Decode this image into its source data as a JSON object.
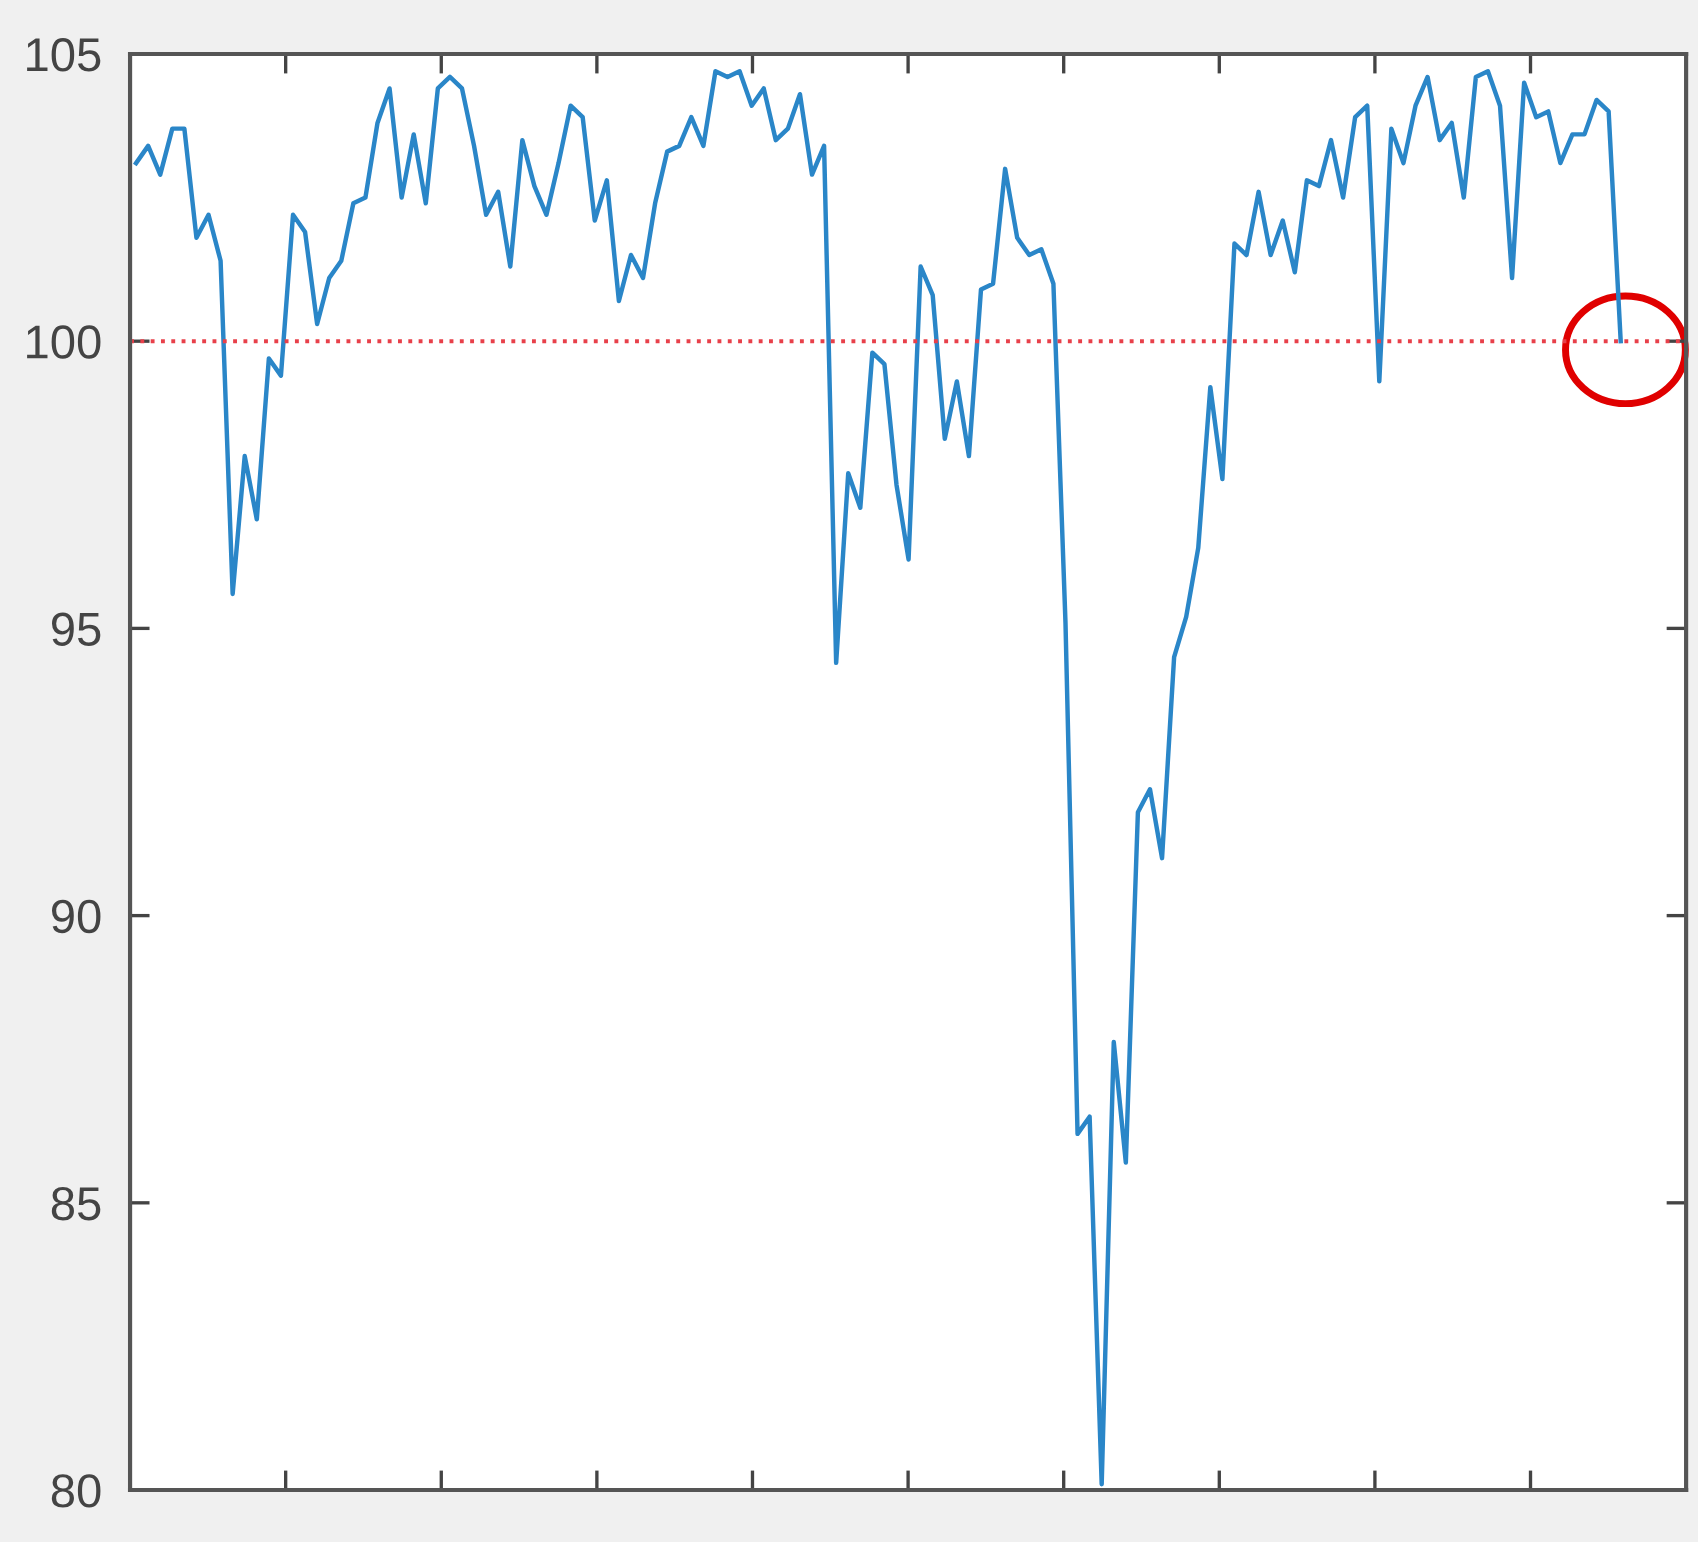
{
  "chart_data": {
    "type": "line",
    "categories": [
      null,
      null,
      null,
      null,
      null,
      null,
      null,
      null,
      null,
      null,
      null,
      null,
      null,
      null,
      null,
      null,
      null,
      null,
      null,
      null,
      null,
      null,
      null,
      null,
      null,
      null,
      null,
      null,
      null,
      null,
      null,
      null,
      null,
      null,
      null,
      null,
      null,
      null,
      null,
      null,
      null,
      null,
      null,
      null,
      null,
      null,
      null,
      null,
      null,
      null,
      null,
      null,
      null,
      null,
      null,
      null,
      null,
      null,
      null,
      null,
      null,
      null,
      null,
      null,
      null,
      null,
      null,
      null,
      null,
      null,
      null,
      null,
      null,
      null,
      null,
      null,
      null,
      null,
      null,
      null,
      null,
      null,
      null,
      null,
      null,
      null,
      null,
      null,
      null,
      null,
      null,
      null,
      null,
      null,
      null,
      null,
      null,
      null,
      null,
      null,
      null,
      null,
      null,
      null,
      null,
      null,
      null,
      null,
      null,
      null,
      null,
      null,
      null,
      null,
      null,
      null,
      null,
      null,
      null,
      null,
      null,
      null,
      null,
      null
    ],
    "series": [
      {
        "color": "#2a86c8",
        "values": [
          103.1,
          103.4,
          102.9,
          103.7,
          103.7,
          101.8,
          102.2,
          101.4,
          95.6,
          98.0,
          96.9,
          99.7,
          99.4,
          102.2,
          101.9,
          100.3,
          101.1,
          101.4,
          102.4,
          102.5,
          103.8,
          104.4,
          102.5,
          103.6,
          102.4,
          104.4,
          104.6,
          104.4,
          103.4,
          102.2,
          102.6,
          101.3,
          103.5,
          102.7,
          102.2,
          103.1,
          104.1,
          103.9,
          102.1,
          102.8,
          100.7,
          101.5,
          101.1,
          102.4,
          103.3,
          103.4,
          103.9,
          103.4,
          104.7,
          104.6,
          104.7,
          104.1,
          104.4,
          103.5,
          103.7,
          104.3,
          102.9,
          103.4,
          94.4,
          97.7,
          97.1,
          99.8,
          99.6,
          97.5,
          96.2,
          101.3,
          100.8,
          98.3,
          99.3,
          98.0,
          100.9,
          101.0,
          103.0,
          101.8,
          101.5,
          101.6,
          101.0,
          95.1,
          86.2,
          86.5,
          80.1,
          87.8,
          85.7,
          91.8,
          92.2,
          91.0,
          94.5,
          95.2,
          96.4,
          99.2,
          97.6,
          101.7,
          101.5,
          102.6,
          101.5,
          102.1,
          101.2,
          102.8,
          102.7,
          103.5,
          102.5,
          103.9,
          104.1,
          99.3,
          103.7,
          103.1,
          104.1,
          104.6,
          103.5,
          103.8,
          102.5,
          104.6,
          104.7,
          104.1,
          101.1,
          104.5,
          103.9,
          104.0,
          103.1,
          103.6,
          103.6,
          104.2,
          104.0,
          100.0
        ]
      }
    ],
    "ylim": [
      80,
      105
    ],
    "yticks": [
      80,
      85,
      90,
      95,
      100,
      105
    ],
    "ref_lines": [
      {
        "axis": "y",
        "value": 100,
        "color": "#e8404a",
        "line_style": "dotted"
      }
    ],
    "grid": false,
    "line_style": "solid",
    "marker": "none"
  }
}
